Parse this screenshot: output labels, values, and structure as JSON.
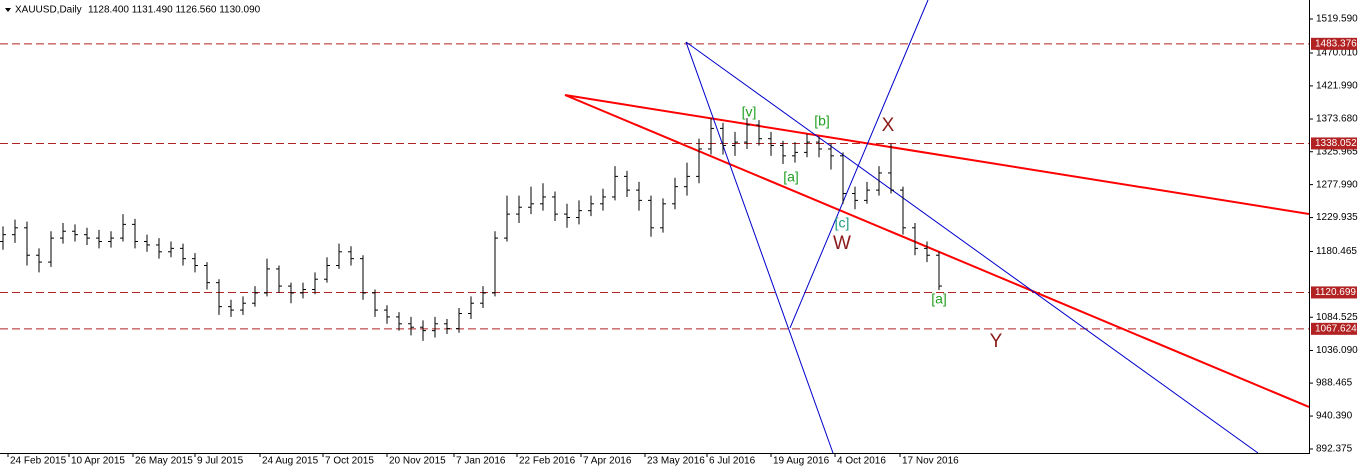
{
  "chart_data": {
    "type": "ohlc",
    "title": "XAUUSD,Daily",
    "subtitle": "1128.400 1131.490 1126.560 1130.090",
    "color": "#000000",
    "x": [
      0,
      6,
      12,
      18,
      24,
      30,
      36,
      42,
      48,
      54,
      60,
      66,
      72,
      78,
      84,
      90,
      96,
      102,
      108,
      114,
      120,
      126,
      132,
      138,
      144,
      150,
      156,
      162,
      168,
      174,
      180,
      186,
      192,
      198,
      204,
      210,
      216,
      222,
      228,
      234,
      240,
      246,
      252,
      258,
      264,
      270,
      276,
      282,
      288,
      294,
      300,
      306,
      312,
      318,
      324,
      330,
      336,
      342,
      348,
      354,
      360,
      366,
      372,
      378,
      384,
      390,
      396,
      402,
      408,
      414,
      420,
      426,
      432,
      438,
      444,
      450,
      456,
      462,
      468
    ],
    "ohlc": [
      [
        1195,
        1217,
        1183,
        1205
      ],
      [
        1205,
        1227,
        1193,
        1215
      ],
      [
        1215,
        1224,
        1160,
        1175
      ],
      [
        1175,
        1185,
        1150,
        1165
      ],
      [
        1165,
        1210,
        1158,
        1200
      ],
      [
        1200,
        1222,
        1192,
        1210
      ],
      [
        1210,
        1220,
        1195,
        1205
      ],
      [
        1205,
        1215,
        1190,
        1200
      ],
      [
        1200,
        1212,
        1185,
        1195
      ],
      [
        1195,
        1210,
        1186,
        1200
      ],
      [
        1200,
        1235,
        1195,
        1220
      ],
      [
        1220,
        1228,
        1185,
        1195
      ],
      [
        1195,
        1205,
        1180,
        1190
      ],
      [
        1190,
        1200,
        1170,
        1180
      ],
      [
        1180,
        1195,
        1172,
        1185
      ],
      [
        1185,
        1192,
        1160,
        1170
      ],
      [
        1170,
        1178,
        1150,
        1160
      ],
      [
        1160,
        1165,
        1125,
        1135
      ],
      [
        1135,
        1140,
        1088,
        1100
      ],
      [
        1100,
        1110,
        1085,
        1095
      ],
      [
        1095,
        1115,
        1088,
        1105
      ],
      [
        1105,
        1130,
        1100,
        1120
      ],
      [
        1120,
        1170,
        1115,
        1155
      ],
      [
        1155,
        1160,
        1120,
        1130
      ],
      [
        1130,
        1135,
        1105,
        1120
      ],
      [
        1120,
        1135,
        1112,
        1125
      ],
      [
        1125,
        1150,
        1118,
        1140
      ],
      [
        1140,
        1172,
        1135,
        1160
      ],
      [
        1160,
        1192,
        1155,
        1180
      ],
      [
        1180,
        1188,
        1160,
        1170
      ],
      [
        1170,
        1175,
        1110,
        1120
      ],
      [
        1120,
        1125,
        1085,
        1095
      ],
      [
        1095,
        1102,
        1075,
        1085
      ],
      [
        1085,
        1092,
        1065,
        1075
      ],
      [
        1075,
        1085,
        1058,
        1070
      ],
      [
        1070,
        1080,
        1050,
        1065
      ],
      [
        1065,
        1085,
        1055,
        1075
      ],
      [
        1075,
        1082,
        1060,
        1068
      ],
      [
        1068,
        1098,
        1062,
        1090
      ],
      [
        1090,
        1115,
        1082,
        1105
      ],
      [
        1105,
        1130,
        1098,
        1120
      ],
      [
        1120,
        1210,
        1115,
        1200
      ],
      [
        1200,
        1262,
        1195,
        1235
      ],
      [
        1235,
        1262,
        1222,
        1245
      ],
      [
        1245,
        1275,
        1235,
        1250
      ],
      [
        1250,
        1280,
        1240,
        1260
      ],
      [
        1260,
        1268,
        1225,
        1235
      ],
      [
        1235,
        1250,
        1215,
        1230
      ],
      [
        1230,
        1255,
        1220,
        1240
      ],
      [
        1240,
        1262,
        1232,
        1250
      ],
      [
        1250,
        1272,
        1240,
        1260
      ],
      [
        1260,
        1305,
        1255,
        1290
      ],
      [
        1290,
        1298,
        1260,
        1270
      ],
      [
        1270,
        1282,
        1240,
        1255
      ],
      [
        1255,
        1262,
        1202,
        1215
      ],
      [
        1215,
        1258,
        1208,
        1250
      ],
      [
        1250,
        1288,
        1242,
        1275
      ],
      [
        1275,
        1310,
        1262,
        1290
      ],
      [
        1290,
        1345,
        1280,
        1330
      ],
      [
        1330,
        1375,
        1322,
        1360
      ],
      [
        1360,
        1368,
        1322,
        1335
      ],
      [
        1335,
        1355,
        1320,
        1340
      ],
      [
        1340,
        1375,
        1330,
        1365
      ],
      [
        1365,
        1372,
        1335,
        1345
      ],
      [
        1345,
        1355,
        1320,
        1335
      ],
      [
        1335,
        1342,
        1308,
        1320
      ],
      [
        1320,
        1340,
        1310,
        1325
      ],
      [
        1325,
        1352,
        1318,
        1340
      ],
      [
        1340,
        1348,
        1318,
        1330
      ],
      [
        1330,
        1338,
        1300,
        1320
      ],
      [
        1320,
        1325,
        1250,
        1265
      ],
      [
        1265,
        1275,
        1242,
        1255
      ],
      [
        1255,
        1282,
        1250,
        1270
      ],
      [
        1270,
        1305,
        1262,
        1295
      ],
      [
        1295,
        1338,
        1265,
        1270
      ],
      [
        1270,
        1275,
        1205,
        1215
      ],
      [
        1215,
        1222,
        1175,
        1185
      ],
      [
        1185,
        1195,
        1165,
        1175
      ],
      [
        1175,
        1180,
        1124,
        1130
      ]
    ],
    "xlim": [
      -1.5,
      653.5
    ],
    "xticks": [
      {
        "value": 2.5,
        "label": "24 Feb 2015"
      },
      {
        "value": 33,
        "label": "10 Apr 2015"
      },
      {
        "value": 65,
        "label": "26 May 2015"
      },
      {
        "value": 96,
        "label": "9 Jul 2015"
      },
      {
        "value": 128.5,
        "label": "24 Aug 2015"
      },
      {
        "value": 160,
        "label": "7 Oct 2015"
      },
      {
        "value": 192,
        "label": "20 Nov 2015"
      },
      {
        "value": 225.5,
        "label": "7 Jan 2016"
      },
      {
        "value": 257,
        "label": "22 Feb 2016"
      },
      {
        "value": 289,
        "label": "7 Apr 2016"
      },
      {
        "value": 321,
        "label": "23 May 2016"
      },
      {
        "value": 352,
        "label": "6 Jul 2016"
      },
      {
        "value": 384,
        "label": "19 Aug 2016"
      },
      {
        "value": 416,
        "label": "4 Oct 2016"
      },
      {
        "value": 448.5,
        "label": "17 Nov 2016"
      }
    ],
    "ylim": [
      886.5,
      1547.3
    ],
    "yticks": [
      {
        "value": 1519.59,
        "label": "1519.590"
      },
      {
        "value": 1470.01,
        "label": "1470.010"
      },
      {
        "value": 1421.99,
        "label": "1421.990"
      },
      {
        "value": 1373.68,
        "label": "1373.680"
      },
      {
        "value": 1325.965,
        "label": "1325.965"
      },
      {
        "value": 1277.99,
        "label": "1277.990"
      },
      {
        "value": 1229.935,
        "label": "1229.935"
      },
      {
        "value": 1180.465,
        "label": "1180.465"
      },
      {
        "value": 1084.525,
        "label": "1084.525"
      },
      {
        "value": 1036.09,
        "label": "1036.090"
      },
      {
        "value": 988.465,
        "label": "988.465"
      },
      {
        "value": 940.39,
        "label": "940.390"
      },
      {
        "value": 892.375,
        "label": "892.375"
      }
    ],
    "levels": [
      1483.376,
      1338.052,
      1120.699,
      1067.624
    ],
    "level_color": "#b22222",
    "trendlines": [
      {
        "color": "#ff0000",
        "x": [
          281,
          653
        ],
        "y": [
          1408.7,
          1235.2
        ]
      },
      {
        "color": "#ff0000",
        "x": [
          281,
          653
        ],
        "y": [
          1408.7,
          953.6
        ]
      },
      {
        "color": "#0000cc",
        "x": [
          341.5,
          415
        ],
        "y": [
          1486,
          886.5
        ]
      },
      {
        "color": "#0000cc",
        "x": [
          341.5,
          627.5
        ],
        "y": [
          1486,
          886.5
        ]
      },
      {
        "color": "#0000cc",
        "x": [
          393.5,
          462.5
        ],
        "y": [
          1068.9,
          1547.3
        ]
      }
    ],
    "annotations": [
      {
        "text": "[v]",
        "color": "#22a022"
      },
      {
        "text": "[b]",
        "color": "#22a022"
      },
      {
        "text": "[a]",
        "color": "#22a022"
      },
      {
        "text": "[c]",
        "color": "#1a9a80"
      },
      {
        "text": "W",
        "color": "#8b1a1a"
      },
      {
        "text": "X",
        "color": "#8b1a1a"
      },
      {
        "text": "[a]",
        "color": "#22a022"
      },
      {
        "text": "Y",
        "color": "#8b1a1a"
      }
    ]
  }
}
